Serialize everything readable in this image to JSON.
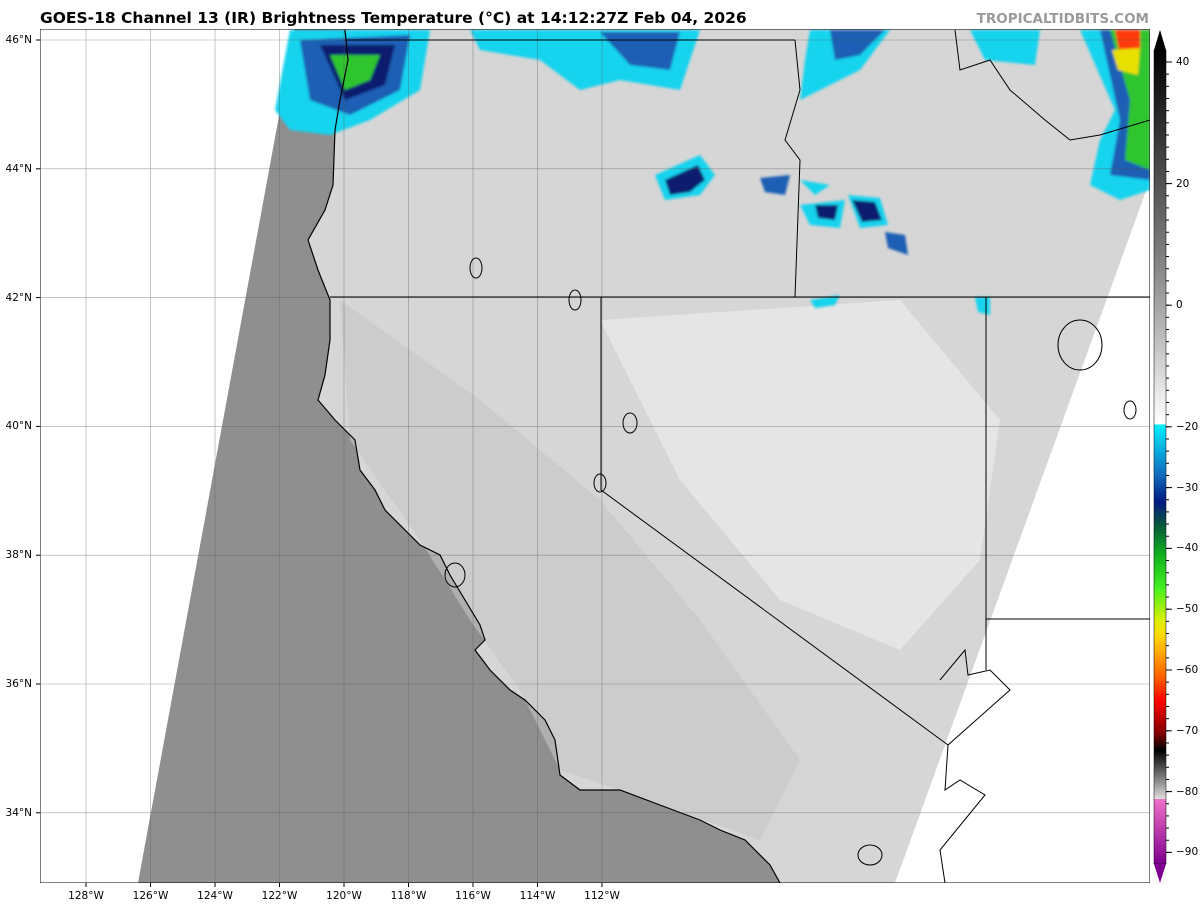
{
  "header": {
    "title": "GOES-18 Channel 13 (IR) Brightness Temperature (°C) at 14:12:27Z Feb 04, 2026",
    "watermark": "TROPICALTIDBITS.COM"
  },
  "map": {
    "x_ticks": [
      "128°W",
      "126°W",
      "124°W",
      "122°W",
      "120°W",
      "118°W",
      "116°W",
      "114°W",
      "112°W"
    ],
    "y_ticks": [
      "46°N",
      "44°N",
      "42°N",
      "40°N",
      "38°N",
      "36°N",
      "34°N"
    ],
    "colors": {
      "ocean": "#8f8f8f",
      "land": "#d9d9d9",
      "cloud_cyan": "#19d3ee",
      "cloud_blue": "#1e5fb4",
      "cloud_navy": "#0a1f6e",
      "cloud_green": "#2ec52e",
      "cloud_dkgreen": "#1a6e3c",
      "cloud_red": "#ff3a10",
      "cloud_yellow": "#e8e000"
    }
  },
  "colorbar": {
    "ticks": [
      "40",
      "20",
      "0",
      "−20",
      "−30",
      "−40",
      "−50",
      "−60",
      "−70",
      "−80",
      "−90"
    ],
    "range": [
      -90,
      40
    ]
  }
}
